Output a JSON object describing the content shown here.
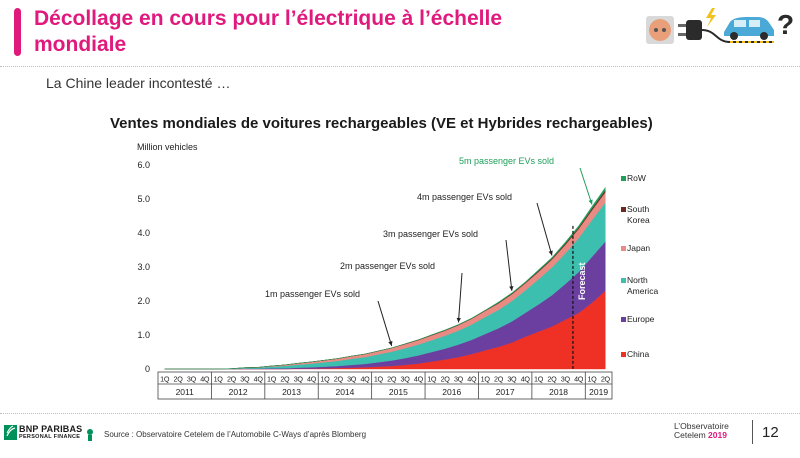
{
  "header": {
    "title": "Décollage en cours pour l’électrique à l’échelle mondiale",
    "subtitle": "La Chine leader incontesté …"
  },
  "colors": {
    "accent": "#e0197d",
    "series": {
      "China": "#ee3124",
      "Europe": "#6b3fa0",
      "North America": "#3cbfae",
      "Japan": "#e98a83",
      "South Korea": "#6d2a22",
      "RoW": "#1e9f5a"
    },
    "forecast_annotation": "#1e9f5a"
  },
  "chart_data": {
    "type": "area",
    "stacked": true,
    "title": "Ventes mondiales de voitures rechargeables (VE et Hybrides rechargeables)",
    "ylabel": "Million vehicles",
    "ylim": [
      0,
      6.0
    ],
    "yticks": [
      "0",
      "1.0",
      "2.0",
      "3.0",
      "4.0",
      "5.0",
      "6.0"
    ],
    "quarters_per_year": [
      "1Q",
      "2Q",
      "3Q",
      "4Q"
    ],
    "x_quarter_labels": [
      "1Q",
      "2Q",
      "3Q",
      "4Q",
      "1Q",
      "2Q",
      "3Q",
      "4Q",
      "1Q",
      "2Q",
      "3Q",
      "4Q",
      "1Q",
      "2Q",
      "3Q",
      "4Q",
      "1Q",
      "2Q",
      "3Q",
      "4Q",
      "1Q",
      "2Q",
      "3Q",
      "4Q",
      "1Q",
      "2Q",
      "3Q",
      "4Q",
      "1Q",
      "2Q",
      "3Q",
      "4Q",
      "1Q",
      "2Q"
    ],
    "years": [
      "2011",
      "2012",
      "2013",
      "2014",
      "2015",
      "2016",
      "2017",
      "2018",
      "2019"
    ],
    "forecast_label": "Forecast",
    "forecast_start_index": 31,
    "legend": [
      "RoW",
      "South Korea",
      "Japan",
      "North America",
      "Europe",
      "China"
    ],
    "series": [
      {
        "name": "China",
        "values": [
          0.0,
          0.0,
          0.0,
          0.0,
          0.0,
          0.0,
          0.0,
          0.0,
          0.0,
          0.0,
          0.01,
          0.01,
          0.02,
          0.03,
          0.04,
          0.05,
          0.07,
          0.09,
          0.12,
          0.16,
          0.22,
          0.28,
          0.35,
          0.44,
          0.55,
          0.65,
          0.78,
          0.95,
          1.1,
          1.25,
          1.45,
          1.65,
          1.95,
          2.3
        ]
      },
      {
        "name": "Europe",
        "values": [
          0.0,
          0.0,
          0.0,
          0.0,
          0.0,
          0.0,
          0.01,
          0.01,
          0.02,
          0.02,
          0.03,
          0.04,
          0.05,
          0.06,
          0.08,
          0.1,
          0.13,
          0.16,
          0.2,
          0.24,
          0.28,
          0.32,
          0.37,
          0.42,
          0.48,
          0.55,
          0.62,
          0.7,
          0.8,
          0.92,
          1.05,
          1.2,
          1.35,
          1.45
        ]
      },
      {
        "name": "North America",
        "values": [
          0.0,
          0.0,
          0.0,
          0.0,
          0.0,
          0.01,
          0.02,
          0.03,
          0.05,
          0.07,
          0.09,
          0.11,
          0.13,
          0.15,
          0.18,
          0.2,
          0.23,
          0.26,
          0.29,
          0.32,
          0.35,
          0.38,
          0.41,
          0.45,
          0.5,
          0.54,
          0.6,
          0.66,
          0.74,
          0.82,
          0.9,
          1.0,
          1.08,
          1.15
        ]
      },
      {
        "name": "Japan",
        "values": [
          0.0,
          0.0,
          0.0,
          0.0,
          0.0,
          0.0,
          0.01,
          0.01,
          0.02,
          0.03,
          0.04,
          0.05,
          0.06,
          0.07,
          0.08,
          0.09,
          0.1,
          0.11,
          0.12,
          0.13,
          0.14,
          0.15,
          0.16,
          0.17,
          0.18,
          0.19,
          0.2,
          0.21,
          0.22,
          0.23,
          0.25,
          0.27,
          0.29,
          0.3
        ]
      },
      {
        "name": "South Korea",
        "values": [
          0.0,
          0.0,
          0.0,
          0.0,
          0.0,
          0.0,
          0.0,
          0.0,
          0.0,
          0.0,
          0.0,
          0.0,
          0.0,
          0.0,
          0.0,
          0.0,
          0.0,
          0.0,
          0.01,
          0.01,
          0.01,
          0.01,
          0.01,
          0.01,
          0.01,
          0.02,
          0.02,
          0.02,
          0.03,
          0.03,
          0.04,
          0.04,
          0.05,
          0.06
        ]
      },
      {
        "name": "RoW",
        "values": [
          0.0,
          0.0,
          0.0,
          0.0,
          0.0,
          0.0,
          0.0,
          0.0,
          0.0,
          0.0,
          0.0,
          0.0,
          0.0,
          0.0,
          0.0,
          0.0,
          0.0,
          0.0,
          0.0,
          0.0,
          0.01,
          0.01,
          0.01,
          0.01,
          0.01,
          0.02,
          0.02,
          0.02,
          0.03,
          0.03,
          0.04,
          0.05,
          0.06,
          0.08
        ]
      }
    ],
    "annotations": [
      {
        "text": "1m passenger EVs sold",
        "at_index": 17,
        "cumulative_millions": 1
      },
      {
        "text": "2m passenger EVs sold",
        "at_index": 22,
        "cumulative_millions": 2
      },
      {
        "text": "3m passenger EVs sold",
        "at_index": 26,
        "cumulative_millions": 3
      },
      {
        "text": "4m passenger EVs sold",
        "at_index": 29,
        "cumulative_millions": 4
      },
      {
        "text": "5m passenger EVs sold",
        "at_index": 32,
        "cumulative_millions": 5
      }
    ]
  },
  "footer": {
    "company": "BNP PARIBAS",
    "company_sub": "PERSONAL FINANCE",
    "source": "Source : Observatoire Cetelem de l’Automobile C-Ways d’après Blomberg",
    "observatoire": "L’Observatoire",
    "cetelem": "Cetelem",
    "year": "2019",
    "page_number": "12"
  }
}
